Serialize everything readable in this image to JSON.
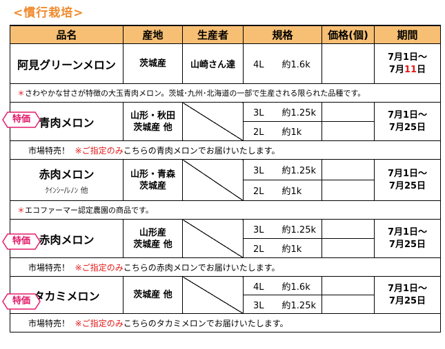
{
  "section_title": "<慣行栽培>",
  "headers": {
    "name": "品名",
    "origin": "産地",
    "grower": "生産者",
    "spec": "規格",
    "price": "価格(個)",
    "period": "期間"
  },
  "badge_label": "特価",
  "products": [
    {
      "name": "阿見グリーンメロン",
      "origin": "茨城産",
      "grower": "山崎さん達",
      "specs": [
        {
          "size": "4L",
          "weight": "約1.6k"
        }
      ],
      "period_start": "7月1日～",
      "period_end_prefix": "7月",
      "period_end_day": "11",
      "period_end_suffix": "日",
      "note_mark": "＊",
      "note": "さわやかな甘さが特徴の大玉青肉メロン。茨城･九州･北海道の一部で生産される限られた品種です。"
    },
    {
      "name": "青肉メロン",
      "origin_line1": "山形・秋田",
      "origin_line2": "茨城産 他",
      "specs": [
        {
          "size": "3L",
          "weight": "約1.25k"
        },
        {
          "size": "2L",
          "weight": "約1k"
        }
      ],
      "period_start": "7月1日～",
      "period_end": "7月25日",
      "note_lead": "市場特売！",
      "note_red": "※ご指定のみ",
      "note_rest": "こちらの青肉メロンでお届けいたします。"
    },
    {
      "name": "赤肉メロン",
      "varieties": "ｸｲﾝｼｰ/ﾚﾉﾝ 他",
      "origin_line1": "山形・青森",
      "origin_line2": "茨城産",
      "specs": [
        {
          "size": "3L",
          "weight": "約1.25k"
        },
        {
          "size": "2L",
          "weight": "約1k"
        }
      ],
      "period_start": "7月1日～",
      "period_end": "7月25日",
      "note_mark": "＊",
      "note": "エコファーマー認定農園の商品です。"
    },
    {
      "name": "赤肉メロン",
      "origin_line1": "山形産",
      "origin_line2": "茨城産 他",
      "specs": [
        {
          "size": "3L",
          "weight": "約1.25k"
        },
        {
          "size": "2L",
          "weight": "約1k"
        }
      ],
      "period_start": "7月1日～",
      "period_end": "7月25日",
      "note_lead": "市場特売！",
      "note_red": "※ご指定のみ",
      "note_rest": "こちらの赤肉メロンでお届けいたします。"
    },
    {
      "name": "タカミメロン",
      "origin": "茨城産 他",
      "specs": [
        {
          "size": "4L",
          "weight": "約1.6k"
        },
        {
          "size": "3L",
          "weight": "約1.25k"
        }
      ],
      "period_start": "7月1日～",
      "period_end": "7月25日",
      "note_lead": "市場特売！",
      "note_red": "※ご指定のみ",
      "note_rest": "こちらのタカミメロンでお届けいたします。"
    }
  ],
  "colors": {
    "header_bg": "#f7bf73",
    "title": "#f08a2c",
    "accent_red": "#e21a1a",
    "badge": "#e21a6a"
  }
}
